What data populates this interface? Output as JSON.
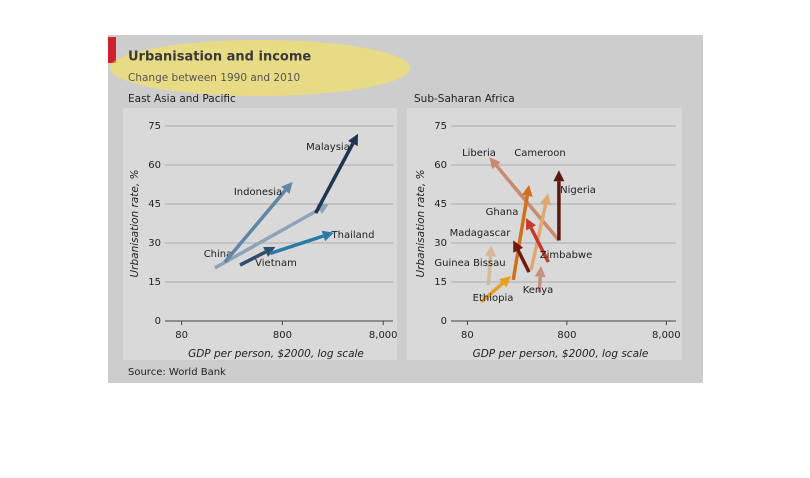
{
  "title": "Urbanisation and income",
  "subtitle": "Change between 1990 and 2010",
  "source": "Source: World Bank",
  "chart_data": [
    {
      "type": "arrow",
      "title": "East Asia and Pacific",
      "xlabel": "GDP per person, $2000, log scale",
      "ylabel": "Urbanisation rate, %",
      "xscale": "log",
      "xlim": [
        60,
        10000
      ],
      "xticks": [
        80,
        800,
        {
          "value": 8000,
          "label": "8,000"
        }
      ],
      "ylim": [
        0,
        75
      ],
      "yticks": [
        0,
        15,
        30,
        45,
        60,
        75
      ],
      "grid": true,
      "series": [
        {
          "name": "China",
          "color": "#8fa3b8",
          "x": [
            171,
            2310
          ],
          "values": [
            20.4,
            45
          ]
        },
        {
          "name": "Indonesia",
          "color": "#5f86a6",
          "x": [
            215,
            1007
          ],
          "values": [
            22.7,
            53.5
          ]
        },
        {
          "name": "Vietnam",
          "color": "#2f4e6e",
          "x": [
            304,
            681
          ],
          "values": [
            21.5,
            28.5
          ]
        },
        {
          "name": "Thailand",
          "color": "#2a7aa8",
          "x": [
            607,
            2590
          ],
          "values": [
            26,
            34
          ]
        },
        {
          "name": "Malaysia",
          "color": "#1d3550",
          "x": [
            1710,
            4500
          ],
          "values": [
            41.5,
            72
          ]
        }
      ]
    },
    {
      "type": "arrow",
      "title": "Sub-Saharan Africa",
      "xlabel": "GDP per person, $2000, log scale",
      "ylabel": "Urbanisation rate, %",
      "xscale": "log",
      "xlim": [
        60,
        10000
      ],
      "xticks": [
        80,
        800,
        {
          "value": 8000,
          "label": "8,000"
        }
      ],
      "ylim": [
        0,
        75
      ],
      "yticks": [
        0,
        15,
        30,
        45,
        60,
        75
      ],
      "grid": true,
      "series": [
        {
          "name": "Liberia",
          "color": "#c98a6e",
          "x": [
            665,
            133
          ],
          "values": [
            31,
            63
          ]
        },
        {
          "name": "Cameroon",
          "color": "#e0a870",
          "x": [
            349,
            517
          ],
          "values": [
            19.6,
            49
          ]
        },
        {
          "name": "Nigeria",
          "color": "#5a1a0e",
          "x": [
            665,
            665
          ],
          "values": [
            31,
            58
          ]
        },
        {
          "name": "Ghana",
          "color": "#d0701c",
          "x": [
            231,
            333
          ],
          "values": [
            15.8,
            52.3
          ]
        },
        {
          "name": "Zimbabwe",
          "color": "#c8382c",
          "x": [
            520,
            311
          ],
          "values": [
            22.7,
            39.6
          ]
        },
        {
          "name": "Madagascar",
          "color": "#6e1a10",
          "x": [
            333,
            231
          ],
          "values": [
            18.8,
            31
          ]
        },
        {
          "name": "Guinea Bissau",
          "color": "#d8b89a",
          "x": [
            130,
            139
          ],
          "values": [
            13.8,
            29.2
          ]
        },
        {
          "name": "Ethiopia",
          "color": "#e8a020",
          "x": [
            110,
            220
          ],
          "values": [
            7.3,
            17.3
          ]
        },
        {
          "name": "Kenya",
          "color": "#c89080",
          "x": [
            420,
            440
          ],
          "values": [
            11.2,
            21.2
          ]
        }
      ]
    }
  ]
}
